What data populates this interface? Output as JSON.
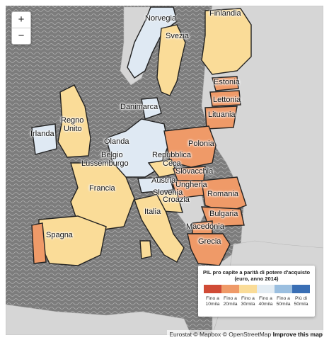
{
  "zoom": {
    "in_label": "+",
    "out_label": "−"
  },
  "country_labels": [
    "Norvegia",
    "Finlandia",
    "Svezia",
    "Estonia",
    "Lettonia",
    "Danimarca",
    "Lituania",
    "Regno",
    "Unito",
    "Irlanda",
    "Polonia",
    "Olanda",
    "Belgio",
    "Repubblica",
    "Lussemburgo",
    "Ceca",
    "Slovacchia",
    "Austria",
    "Ungheria",
    "Francia",
    "Slovenia",
    "Romania",
    "Croazia",
    "Italia",
    "Bulgaria",
    "Macedonia",
    "Spagna",
    "Grecia"
  ],
  "legend": {
    "title_line1": "PIL pro capite a parità di potere d'acquisto",
    "title_line2": "(euro, anno 2014)",
    "colors": [
      "#d04b36",
      "#ef9a68",
      "#fadc98",
      "#e3ecf3",
      "#9bbfe0",
      "#3a6fb5"
    ],
    "labels": [
      "Fino a\n10mila",
      "Fino a\n20mila",
      "Fino a\n30mila",
      "Fino a\n40mila",
      "Fino a\n50mila",
      "Più di\n50mila"
    ]
  },
  "attribution": {
    "text": "Eurostat © Mapbox © OpenStreetMap ",
    "link": "Improve this map"
  }
}
